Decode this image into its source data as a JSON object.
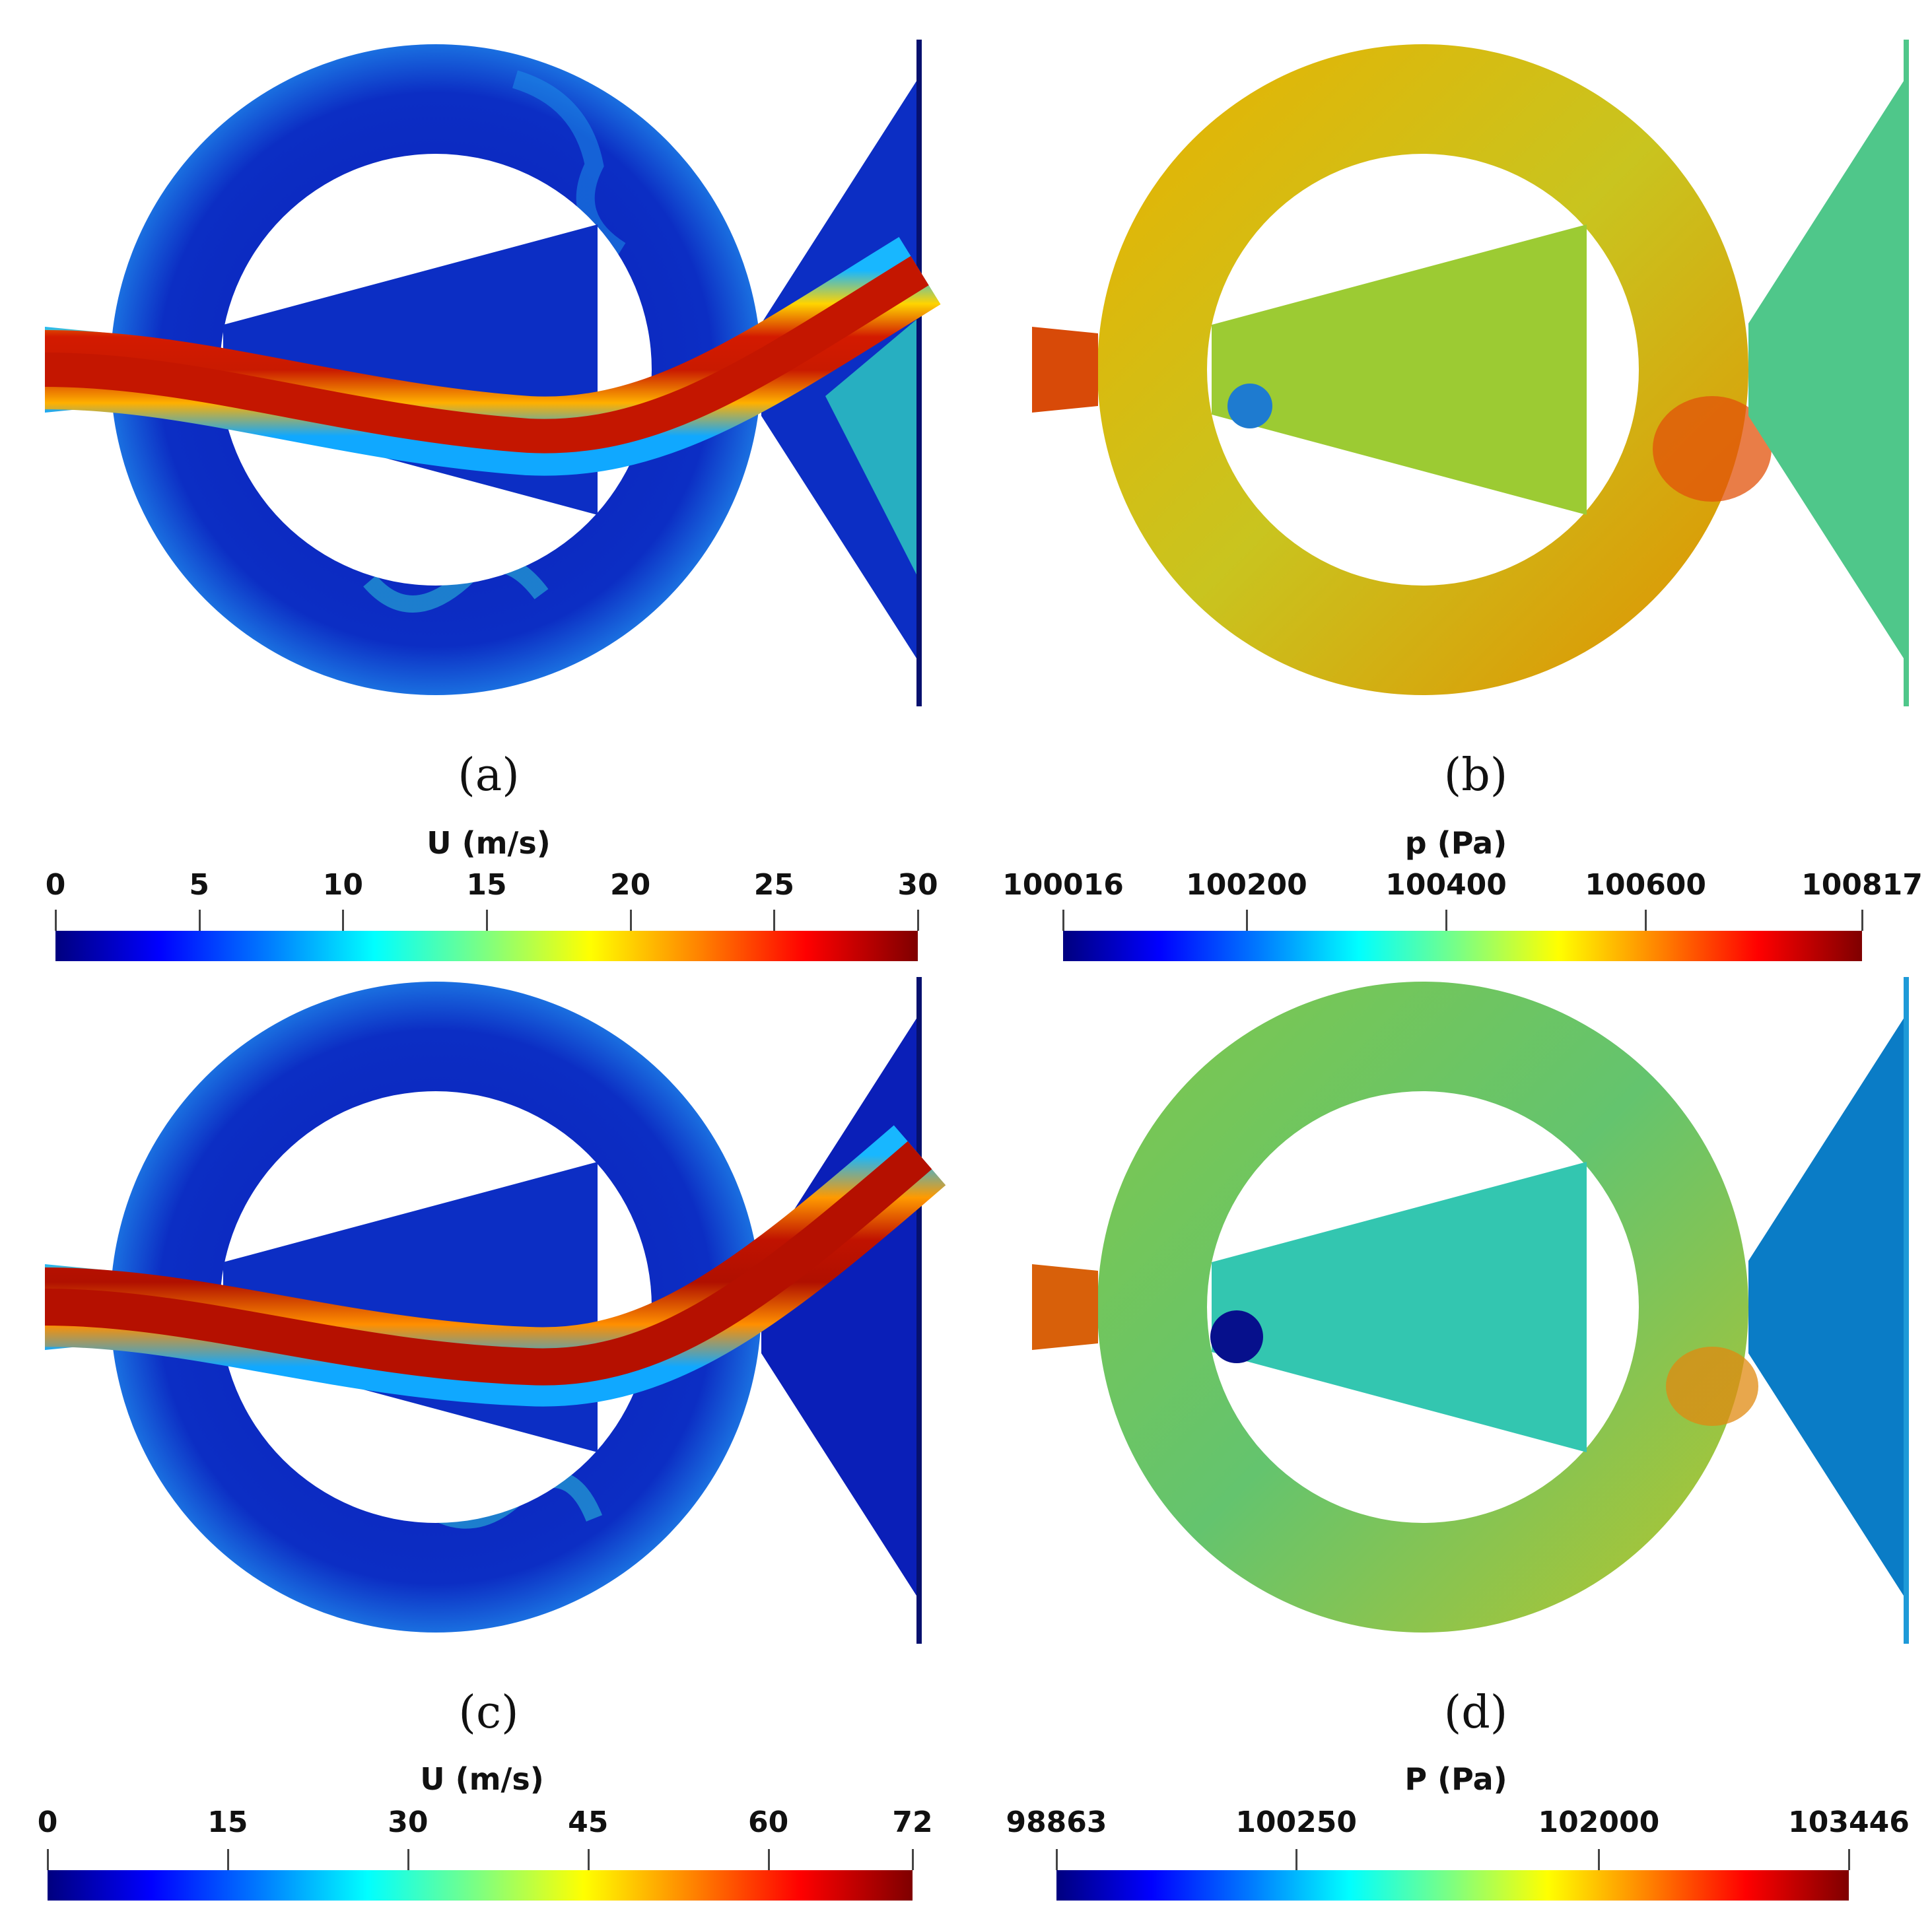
{
  "panels": [
    {
      "caption": "(a)",
      "field": "velocity"
    },
    {
      "caption": "(b)",
      "field": "pressure"
    },
    {
      "caption": "(c)",
      "field": "velocity"
    },
    {
      "caption": "(d)",
      "field": "pressure"
    }
  ],
  "colorbars": [
    {
      "title": "U (m/s)",
      "ticks": [
        "0",
        "5",
        "10",
        "15",
        "20",
        "25",
        "30"
      ],
      "range": [
        0,
        30
      ]
    },
    {
      "title": "p (Pa)",
      "ticks": [
        "100016",
        "100200",
        "100400",
        "100600",
        "100817"
      ],
      "range": [
        100016,
        100817
      ]
    },
    {
      "title": "U (m/s)",
      "ticks": [
        "0",
        "15",
        "30",
        "45",
        "60",
        "72"
      ],
      "range": [
        0,
        72
      ]
    },
    {
      "title": "P (Pa)",
      "ticks": [
        "98863",
        "100250",
        "102000",
        "103446"
      ],
      "range": [
        98863,
        103446
      ]
    }
  ],
  "colormap": [
    "#00007f",
    "#0000ff",
    "#007fff",
    "#00ffff",
    "#7fff7f",
    "#ffff00",
    "#ff7f00",
    "#ff0000",
    "#7f0000"
  ]
}
